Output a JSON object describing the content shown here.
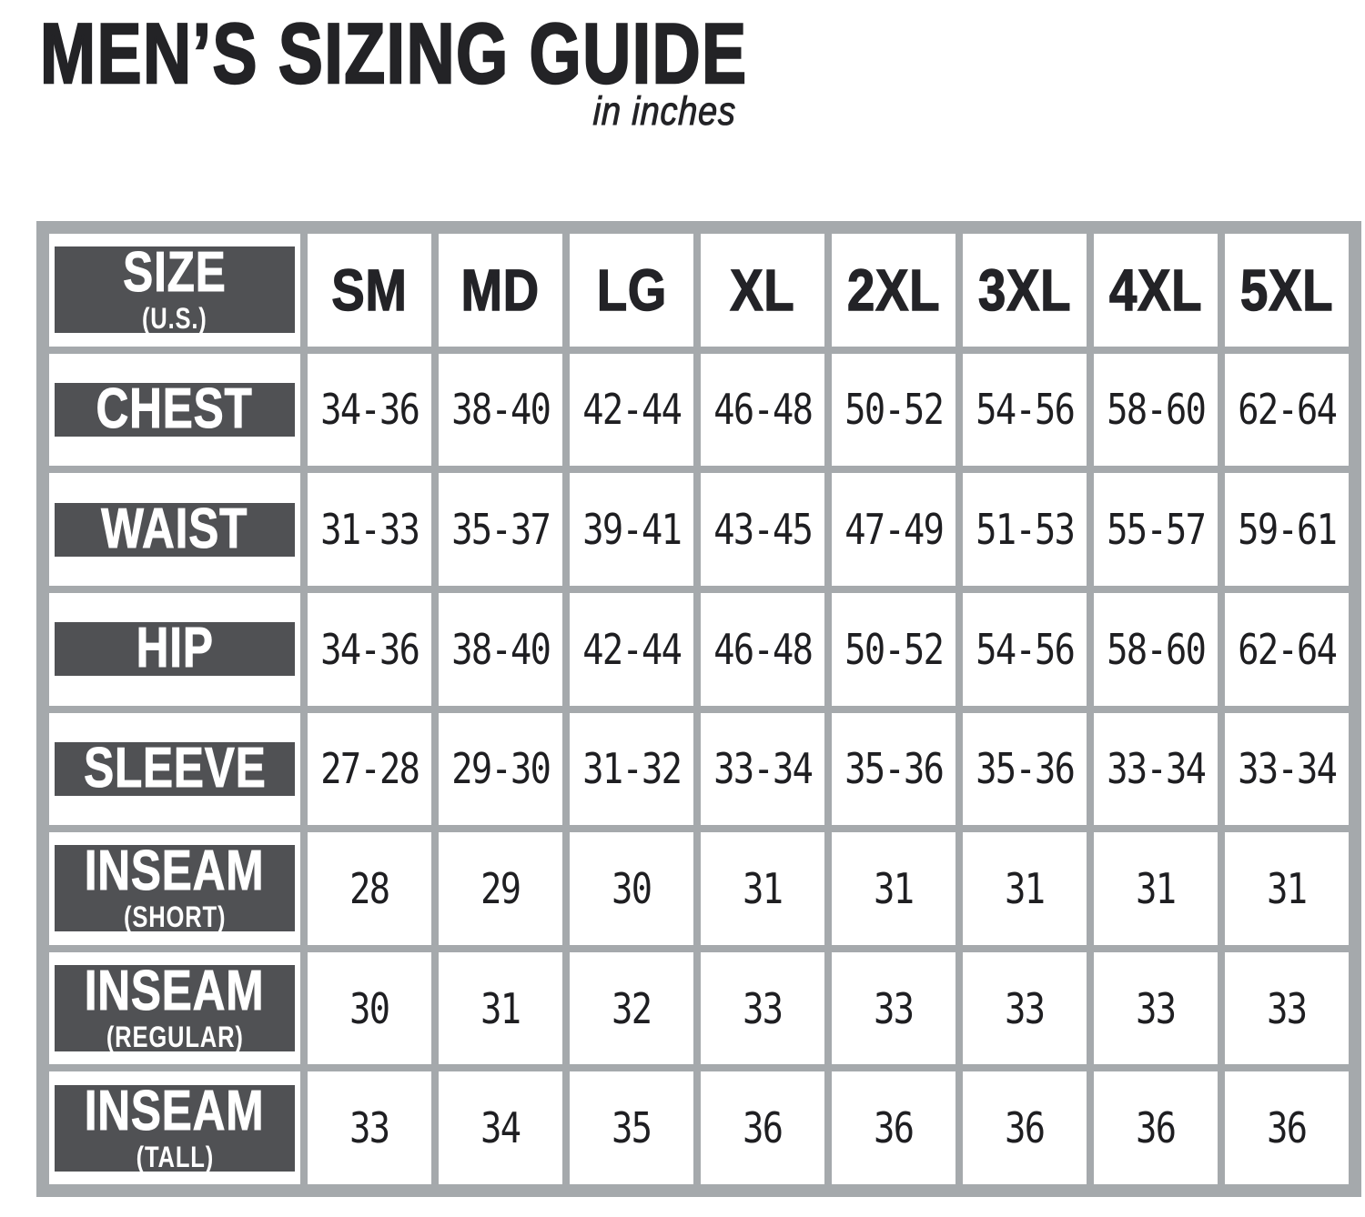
{
  "title": "MEN’S SIZING GUIDE",
  "subtitle": "in inches",
  "colors": {
    "frame_gray": "#a5a9ac",
    "header_dark": "#505154",
    "title_text": "#232326",
    "value_text": "#1e1e21",
    "cell_white": "#ffffff"
  },
  "table": {
    "corner": {
      "label": "SIZE",
      "sub": "(U.S.)"
    },
    "columns": [
      "SM",
      "MD",
      "LG",
      "XL",
      "2XL",
      "3XL",
      "4XL",
      "5XL"
    ],
    "rows": [
      {
        "label": "CHEST",
        "sub": "",
        "values": [
          "34-36",
          "38-40",
          "42-44",
          "46-48",
          "50-52",
          "54-56",
          "58-60",
          "62-64"
        ]
      },
      {
        "label": "WAIST",
        "sub": "",
        "values": [
          "31-33",
          "35-37",
          "39-41",
          "43-45",
          "47-49",
          "51-53",
          "55-57",
          "59-61"
        ]
      },
      {
        "label": "HIP",
        "sub": "",
        "values": [
          "34-36",
          "38-40",
          "42-44",
          "46-48",
          "50-52",
          "54-56",
          "58-60",
          "62-64"
        ]
      },
      {
        "label": "SLEEVE",
        "sub": "",
        "values": [
          "27-28",
          "29-30",
          "31-32",
          "33-34",
          "35-36",
          "35-36",
          "33-34",
          "33-34"
        ]
      },
      {
        "label": "INSEAM",
        "sub": "(SHORT)",
        "values": [
          "28",
          "29",
          "30",
          "31",
          "31",
          "31",
          "31",
          "31"
        ]
      },
      {
        "label": "INSEAM",
        "sub": "(REGULAR)",
        "values": [
          "30",
          "31",
          "32",
          "33",
          "33",
          "33",
          "33",
          "33"
        ]
      },
      {
        "label": "INSEAM",
        "sub": "(TALL)",
        "values": [
          "33",
          "34",
          "35",
          "36",
          "36",
          "36",
          "36",
          "36"
        ]
      }
    ]
  }
}
